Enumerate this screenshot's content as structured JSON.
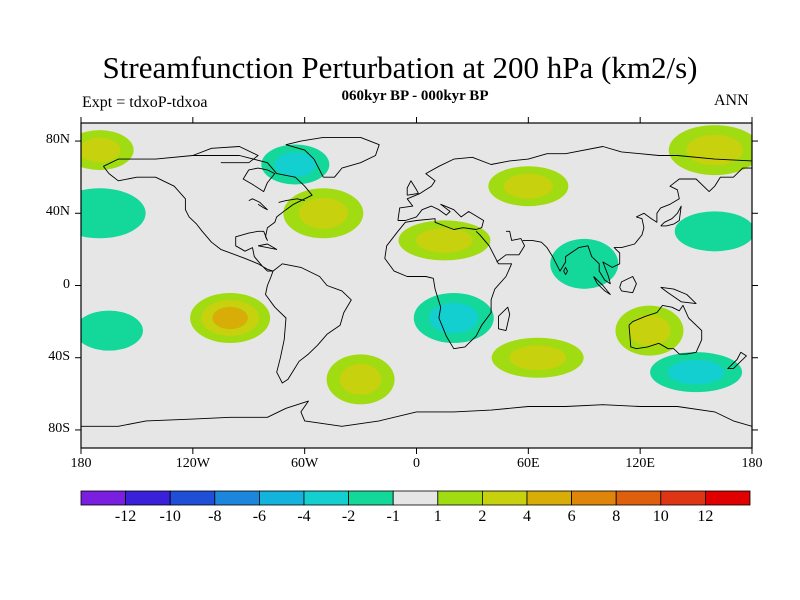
{
  "title": "Streamfunction Perturbation at 200 hPa (km2/s)",
  "subtitle": "060kyr BP - 000kyr BP",
  "left_label": "Expt = tdxoP-tdxoa",
  "right_label": "ANN",
  "lat_ticks": [
    "80N",
    "40N",
    "0",
    "40S",
    "80S"
  ],
  "lon_ticks": [
    "180",
    "120W",
    "60W",
    "0",
    "60E",
    "120E",
    "180"
  ],
  "colorbar": {
    "colors": [
      "#7a1fe0",
      "#3a20d9",
      "#1e4fd6",
      "#1c86dc",
      "#12b3dc",
      "#14cfcf",
      "#14d79a",
      "#e6e6e6",
      "#a1db12",
      "#c8d10e",
      "#d8ad08",
      "#de850a",
      "#df600c",
      "#de3614",
      "#e00000"
    ],
    "labels": [
      "-12",
      "-10",
      "-8",
      "-6",
      "-4",
      "-2",
      "-1",
      "1",
      "2",
      "4",
      "6",
      "8",
      "10",
      "12"
    ]
  },
  "chart_data": {
    "type": "heatmap",
    "title": "Streamfunction Perturbation at 200 hPa (km2/s)",
    "subtitle": "060kyr BP - 000kyr BP",
    "xlabel": "",
    "ylabel": "",
    "xlim": [
      -180,
      180
    ],
    "ylim": [
      -90,
      90
    ],
    "x_ticks": [
      "180",
      "120W",
      "60W",
      "0",
      "60E",
      "120E",
      "180"
    ],
    "y_ticks": [
      "80N",
      "40N",
      "0",
      "40S",
      "80S"
    ],
    "levels": [
      -12,
      -10,
      -8,
      -6,
      -4,
      -2,
      -1,
      1,
      2,
      4,
      6,
      8,
      10,
      12
    ],
    "grid": false,
    "legend": "bottom colorbar",
    "anomaly_centers": [
      {
        "lon": -65,
        "lat": 67,
        "value": -3.5
      },
      {
        "lon": 20,
        "lat": -18,
        "value": -2.5
      },
      {
        "lon": 150,
        "lat": -48,
        "value": -2.5
      },
      {
        "lon": 90,
        "lat": 12,
        "value": -1.5
      },
      {
        "lon": 160,
        "lat": 30,
        "value": -1.5
      },
      {
        "lon": -170,
        "lat": 40,
        "value": -1.5
      },
      {
        "lon": -165,
        "lat": -25,
        "value": -1.5
      },
      {
        "lon": -100,
        "lat": -18,
        "value": 4.5
      },
      {
        "lon": 65,
        "lat": -40,
        "value": 3.5
      },
      {
        "lon": 125,
        "lat": -25,
        "value": 3.0
      },
      {
        "lon": 60,
        "lat": 55,
        "value": 3.5
      },
      {
        "lon": 160,
        "lat": 75,
        "value": 2.5
      },
      {
        "lon": -170,
        "lat": 75,
        "value": 2.5
      },
      {
        "lon": -50,
        "lat": 40,
        "value": 2.5
      },
      {
        "lon": 15,
        "lat": 25,
        "value": 2.5
      },
      {
        "lon": -30,
        "lat": -52,
        "value": 2.5
      }
    ]
  }
}
